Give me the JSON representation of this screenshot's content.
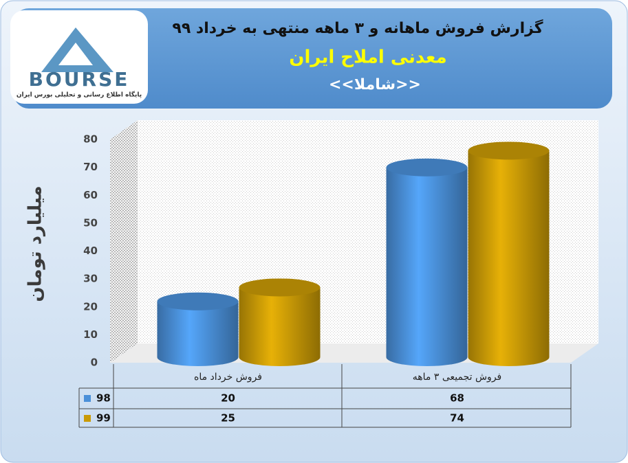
{
  "logo": {
    "name": "BOURSE",
    "tagline": "پایگاه اطلاع رسانی و تحلیلی بورس ایران"
  },
  "chart_data": {
    "type": "bar",
    "title": "گزارش فروش ماهانه و ۳ ماهه منتهی به خرداد ۹۹",
    "subtitle": "معدنی املاح ایران",
    "symbol": "<<شاملا>>",
    "y_label": "میلیارد تومان",
    "categories": [
      "فروش خرداد ماه",
      "فروش تجمیعی ۳ ماهه"
    ],
    "series": [
      {
        "name": "98",
        "color": "#4a90d9",
        "values": [
          20,
          68
        ]
      },
      {
        "name": "99",
        "color": "#c99a06",
        "values": [
          25,
          74
        ]
      }
    ],
    "ylim": [
      0,
      80
    ],
    "yticks": [
      0,
      10,
      20,
      30,
      40,
      50,
      60,
      70,
      80
    ],
    "grid": false
  }
}
